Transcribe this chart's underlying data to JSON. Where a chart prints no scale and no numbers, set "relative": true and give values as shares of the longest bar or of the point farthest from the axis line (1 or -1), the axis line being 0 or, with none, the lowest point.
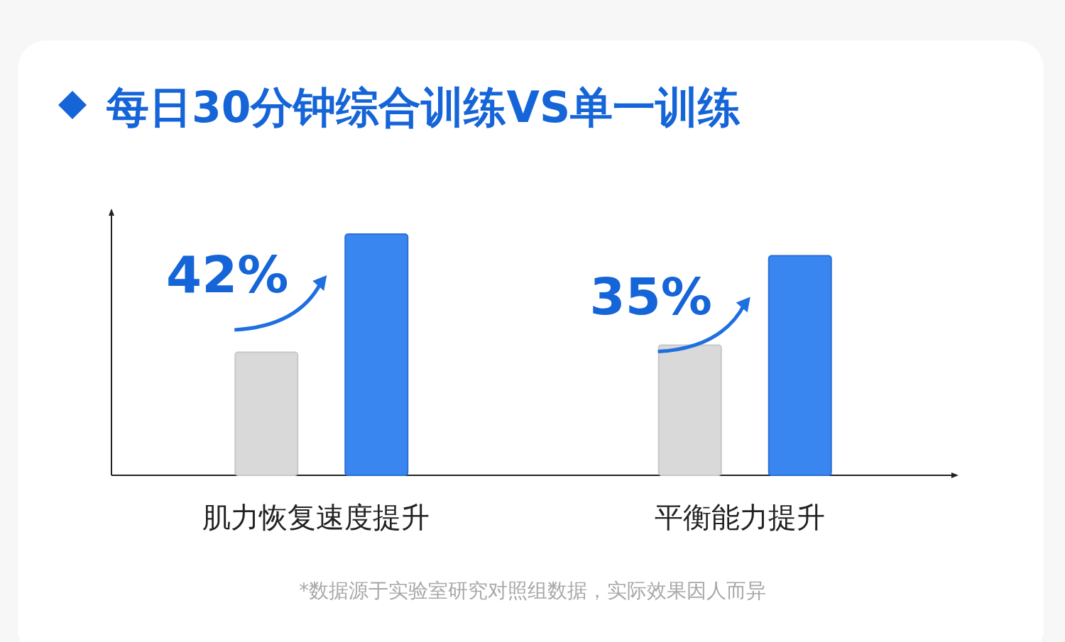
{
  "chart_data": {
    "type": "bar",
    "title": "每日30分钟综合训练VS单一训练",
    "relative": true,
    "categories": [
      "肌力恢复速度提升",
      "平衡能力提升"
    ],
    "series": [
      {
        "color": "#d9d9d9",
        "values": [
          0.51,
          0.54
        ]
      },
      {
        "color": "#3a86f0",
        "values": [
          1,
          0.91
        ]
      }
    ],
    "annotations": [
      "42%",
      "35%",
      "*数据源于实验室研究对照组数据，实际效果因人而异"
    ]
  }
}
